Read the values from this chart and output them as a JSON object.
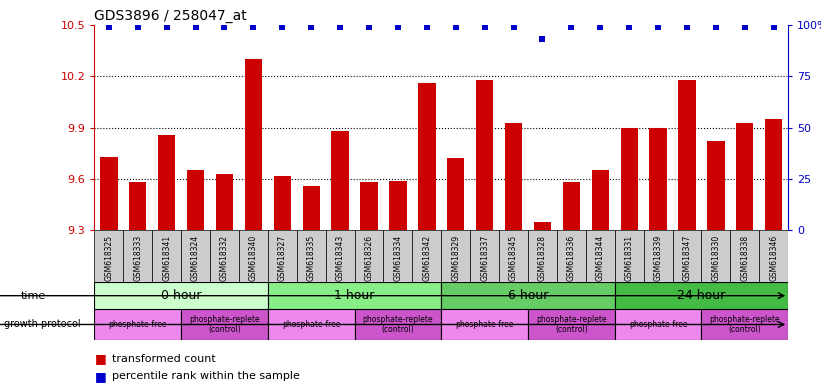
{
  "title": "GDS3896 / 258047_at",
  "samples": [
    "GSM618325",
    "GSM618333",
    "GSM618341",
    "GSM618324",
    "GSM618332",
    "GSM618340",
    "GSM618327",
    "GSM618335",
    "GSM618343",
    "GSM618326",
    "GSM618334",
    "GSM618342",
    "GSM618329",
    "GSM618337",
    "GSM618345",
    "GSM618328",
    "GSM618336",
    "GSM618344",
    "GSM618331",
    "GSM618339",
    "GSM618347",
    "GSM618330",
    "GSM618338",
    "GSM618346"
  ],
  "bar_values": [
    9.73,
    9.58,
    9.86,
    9.65,
    9.63,
    10.3,
    9.62,
    9.56,
    9.88,
    9.58,
    9.59,
    10.16,
    9.72,
    10.18,
    9.93,
    9.35,
    9.58,
    9.65,
    9.9,
    9.9,
    10.18,
    9.82,
    9.93,
    9.95
  ],
  "percentile_values": [
    99,
    99,
    99,
    99,
    99,
    99,
    99,
    99,
    99,
    99,
    99,
    99,
    99,
    99,
    99,
    93,
    99,
    99,
    99,
    99,
    99,
    99,
    99,
    99
  ],
  "bar_color": "#cc0000",
  "percentile_color": "#0000cc",
  "ylim_left": [
    9.3,
    10.5
  ],
  "ylim_right": [
    0,
    100
  ],
  "yticks_left": [
    9.3,
    9.6,
    9.9,
    10.2,
    10.5
  ],
  "yticks_right": [
    0,
    25,
    50,
    75,
    100
  ],
  "ytick_labels_right": [
    "0",
    "25",
    "50",
    "75",
    "100%"
  ],
  "grid_values": [
    9.6,
    9.9,
    10.2
  ],
  "time_groups": [
    {
      "label": "0 hour",
      "start": 0,
      "end": 6,
      "color": "#ccffcc"
    },
    {
      "label": "1 hour",
      "start": 6,
      "end": 12,
      "color": "#88ee88"
    },
    {
      "label": "6 hour",
      "start": 12,
      "end": 18,
      "color": "#66cc66"
    },
    {
      "label": "24 hour",
      "start": 18,
      "end": 24,
      "color": "#44bb44"
    }
  ],
  "protocol_groups": [
    {
      "label": "phosphate-free",
      "start": 0,
      "end": 3,
      "color": "#ee88ee"
    },
    {
      "label": "phosphate-replete\n(control)",
      "start": 3,
      "end": 6,
      "color": "#cc55cc"
    },
    {
      "label": "phosphate-free",
      "start": 6,
      "end": 9,
      "color": "#ee88ee"
    },
    {
      "label": "phosphate-replete\n(control)",
      "start": 9,
      "end": 12,
      "color": "#cc55cc"
    },
    {
      "label": "phosphate-free",
      "start": 12,
      "end": 15,
      "color": "#ee88ee"
    },
    {
      "label": "phosphate-replete\n(control)",
      "start": 15,
      "end": 18,
      "color": "#cc55cc"
    },
    {
      "label": "phosphate-free",
      "start": 18,
      "end": 21,
      "color": "#ee88ee"
    },
    {
      "label": "phosphate-replete\n(control)",
      "start": 21,
      "end": 24,
      "color": "#cc55cc"
    }
  ],
  "left_tick_color": "#cc0000",
  "right_tick_color": "#0000cc",
  "bg_color": "#ffffff",
  "sample_bg_color": "#cccccc"
}
